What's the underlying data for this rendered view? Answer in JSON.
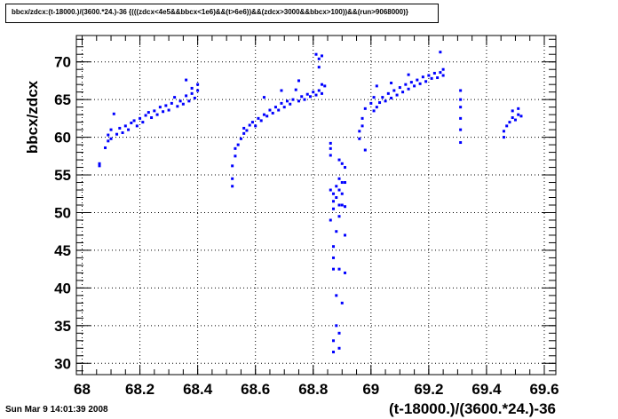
{
  "header": {
    "title": "bbcx/zdcx:(t-18000.)/(3600.*24.)-36 {(((zdcx<4e5&&bbcx<1e6)&&(t>6e6))&&(zdcx>3000&&bbcx>100))&&(run>9068000)}"
  },
  "footer": {
    "timestamp": "Sun Mar  9 14:01:39 2008"
  },
  "chart_data": {
    "type": "scatter",
    "title": "bbcx/zdcx:(t-18000.)/(3600.*24.)-36 {(((zdcx<4e5&&bbcx<1e6)&&(t>6e6))&&(zdcx>3000&&bbcx>100))&&(run>9068000)}",
    "xlabel": "(t-18000.)/(3600.*24.)-36",
    "ylabel": "bbcx/zdcx",
    "xlim": [
      67.98,
      69.64
    ],
    "ylim": [
      28.5,
      73.5
    ],
    "x_ticks": [
      "68",
      "68.2",
      "68.4",
      "68.6",
      "68.8",
      "69",
      "69.2",
      "69.4",
      "69.6"
    ],
    "y_ticks": [
      "30",
      "35",
      "40",
      "45",
      "50",
      "55",
      "60",
      "65",
      "70"
    ],
    "grid": true,
    "legend": "none",
    "color": "#0000ff",
    "points": [
      [
        68.06,
        56.2
      ],
      [
        68.06,
        56.5
      ],
      [
        68.08,
        58.6
      ],
      [
        68.09,
        59.5
      ],
      [
        68.09,
        60.3
      ],
      [
        68.1,
        59.8
      ],
      [
        68.1,
        61.0
      ],
      [
        68.11,
        63.1
      ],
      [
        68.12,
        60.4
      ],
      [
        68.13,
        61.2
      ],
      [
        68.14,
        60.6
      ],
      [
        68.15,
        61.5
      ],
      [
        68.16,
        61.0
      ],
      [
        68.17,
        61.9
      ],
      [
        68.18,
        62.2
      ],
      [
        68.19,
        61.5
      ],
      [
        68.2,
        62.5
      ],
      [
        68.21,
        62.0
      ],
      [
        68.22,
        62.9
      ],
      [
        68.23,
        63.3
      ],
      [
        68.24,
        62.6
      ],
      [
        68.25,
        63.5
      ],
      [
        68.26,
        63.0
      ],
      [
        68.27,
        64.0
      ],
      [
        68.28,
        63.4
      ],
      [
        68.29,
        64.2
      ],
      [
        68.3,
        63.6
      ],
      [
        68.31,
        64.5
      ],
      [
        68.32,
        65.3
      ],
      [
        68.33,
        64.1
      ],
      [
        68.34,
        64.8
      ],
      [
        68.35,
        64.4
      ],
      [
        68.36,
        65.5
      ],
      [
        68.36,
        67.6
      ],
      [
        68.37,
        64.8
      ],
      [
        68.38,
        65.8
      ],
      [
        68.39,
        65.2
      ],
      [
        68.4,
        66.2
      ],
      [
        68.4,
        67.0
      ],
      [
        68.38,
        66.5
      ],
      [
        68.52,
        53.5
      ],
      [
        68.52,
        54.5
      ],
      [
        68.52,
        56.2
      ],
      [
        68.53,
        57.5
      ],
      [
        68.53,
        58.5
      ],
      [
        68.54,
        59.0
      ],
      [
        68.55,
        59.8
      ],
      [
        68.56,
        60.5
      ],
      [
        68.56,
        61.2
      ],
      [
        68.57,
        60.9
      ],
      [
        68.58,
        61.6
      ],
      [
        68.59,
        62.0
      ],
      [
        68.6,
        61.5
      ],
      [
        68.61,
        62.5
      ],
      [
        68.62,
        62.2
      ],
      [
        68.63,
        63.0
      ],
      [
        68.63,
        65.3
      ],
      [
        68.64,
        62.8
      ],
      [
        68.65,
        63.6
      ],
      [
        68.66,
        63.2
      ],
      [
        68.67,
        64.0
      ],
      [
        68.68,
        63.6
      ],
      [
        68.69,
        64.5
      ],
      [
        68.7,
        64.0
      ],
      [
        68.71,
        64.8
      ],
      [
        68.72,
        64.4
      ],
      [
        68.73,
        65.0
      ],
      [
        68.74,
        66.3
      ],
      [
        68.75,
        64.8
      ],
      [
        68.76,
        65.4
      ],
      [
        68.77,
        65.0
      ],
      [
        68.78,
        65.7
      ],
      [
        68.79,
        65.4
      ],
      [
        68.8,
        66.0
      ],
      [
        68.81,
        65.6
      ],
      [
        68.82,
        66.2
      ],
      [
        68.83,
        65.8
      ],
      [
        68.83,
        67.0
      ],
      [
        68.69,
        66.2
      ],
      [
        68.75,
        67.5
      ],
      [
        68.81,
        71.0
      ],
      [
        68.82,
        70.4
      ],
      [
        68.83,
        70.8
      ],
      [
        68.82,
        69.3
      ],
      [
        68.84,
        66.8
      ],
      [
        68.86,
        59.2
      ],
      [
        68.86,
        58.5
      ],
      [
        68.86,
        57.6
      ],
      [
        68.86,
        53.0
      ],
      [
        68.86,
        49.0
      ],
      [
        68.87,
        52.5
      ],
      [
        68.87,
        51.5
      ],
      [
        68.87,
        50.5
      ],
      [
        68.87,
        45.5
      ],
      [
        68.87,
        44.0
      ],
      [
        68.87,
        42.5
      ],
      [
        68.87,
        33.0
      ],
      [
        68.87,
        31.5
      ],
      [
        68.88,
        53.5
      ],
      [
        68.88,
        52.0
      ],
      [
        68.88,
        47.5
      ],
      [
        68.88,
        39.0
      ],
      [
        68.88,
        35.0
      ],
      [
        68.89,
        57.0
      ],
      [
        68.89,
        54.5
      ],
      [
        68.89,
        53.0
      ],
      [
        68.89,
        51.0
      ],
      [
        68.89,
        49.5
      ],
      [
        68.89,
        42.5
      ],
      [
        68.89,
        34.0
      ],
      [
        68.89,
        32.0
      ],
      [
        68.9,
        56.5
      ],
      [
        68.9,
        54.0
      ],
      [
        68.9,
        52.5
      ],
      [
        68.9,
        51.0
      ],
      [
        68.9,
        38.0
      ],
      [
        68.91,
        56.0
      ],
      [
        68.91,
        54.0
      ],
      [
        68.91,
        50.8
      ],
      [
        68.91,
        47.0
      ],
      [
        68.91,
        42.0
      ],
      [
        68.96,
        59.8
      ],
      [
        68.96,
        60.8
      ],
      [
        68.97,
        61.5
      ],
      [
        68.97,
        62.5
      ],
      [
        68.98,
        58.3
      ],
      [
        68.98,
        63.8
      ],
      [
        69.0,
        64.5
      ],
      [
        69.01,
        63.5
      ],
      [
        69.01,
        65.3
      ],
      [
        69.02,
        64.0
      ],
      [
        69.02,
        66.8
      ],
      [
        69.03,
        64.6
      ],
      [
        69.04,
        65.3
      ],
      [
        69.05,
        64.8
      ],
      [
        69.06,
        65.8
      ],
      [
        69.07,
        65.2
      ],
      [
        69.07,
        67.2
      ],
      [
        69.08,
        66.2
      ],
      [
        69.09,
        65.6
      ],
      [
        69.1,
        66.6
      ],
      [
        69.11,
        66.0
      ],
      [
        69.12,
        67.0
      ],
      [
        69.13,
        66.4
      ],
      [
        69.13,
        68.3
      ],
      [
        69.14,
        67.3
      ],
      [
        69.15,
        66.8
      ],
      [
        69.16,
        67.6
      ],
      [
        69.17,
        67.1
      ],
      [
        69.18,
        68.0
      ],
      [
        69.19,
        67.4
      ],
      [
        69.2,
        68.2
      ],
      [
        69.21,
        67.8
      ],
      [
        69.22,
        68.5
      ],
      [
        69.23,
        67.9
      ],
      [
        69.24,
        71.3
      ],
      [
        69.24,
        68.6
      ],
      [
        69.25,
        68.2
      ],
      [
        69.25,
        69.0
      ],
      [
        69.31,
        66.2
      ],
      [
        69.31,
        65.0
      ],
      [
        69.31,
        64.0
      ],
      [
        69.31,
        62.5
      ],
      [
        69.31,
        61.0
      ],
      [
        69.31,
        59.3
      ],
      [
        69.46,
        60.0
      ],
      [
        69.46,
        60.8
      ],
      [
        69.47,
        61.5
      ],
      [
        69.48,
        62.0
      ],
      [
        69.49,
        62.6
      ],
      [
        69.49,
        63.5
      ],
      [
        69.5,
        62.3
      ],
      [
        69.51,
        63.0
      ],
      [
        69.51,
        63.8
      ],
      [
        69.52,
        62.8
      ]
    ]
  }
}
